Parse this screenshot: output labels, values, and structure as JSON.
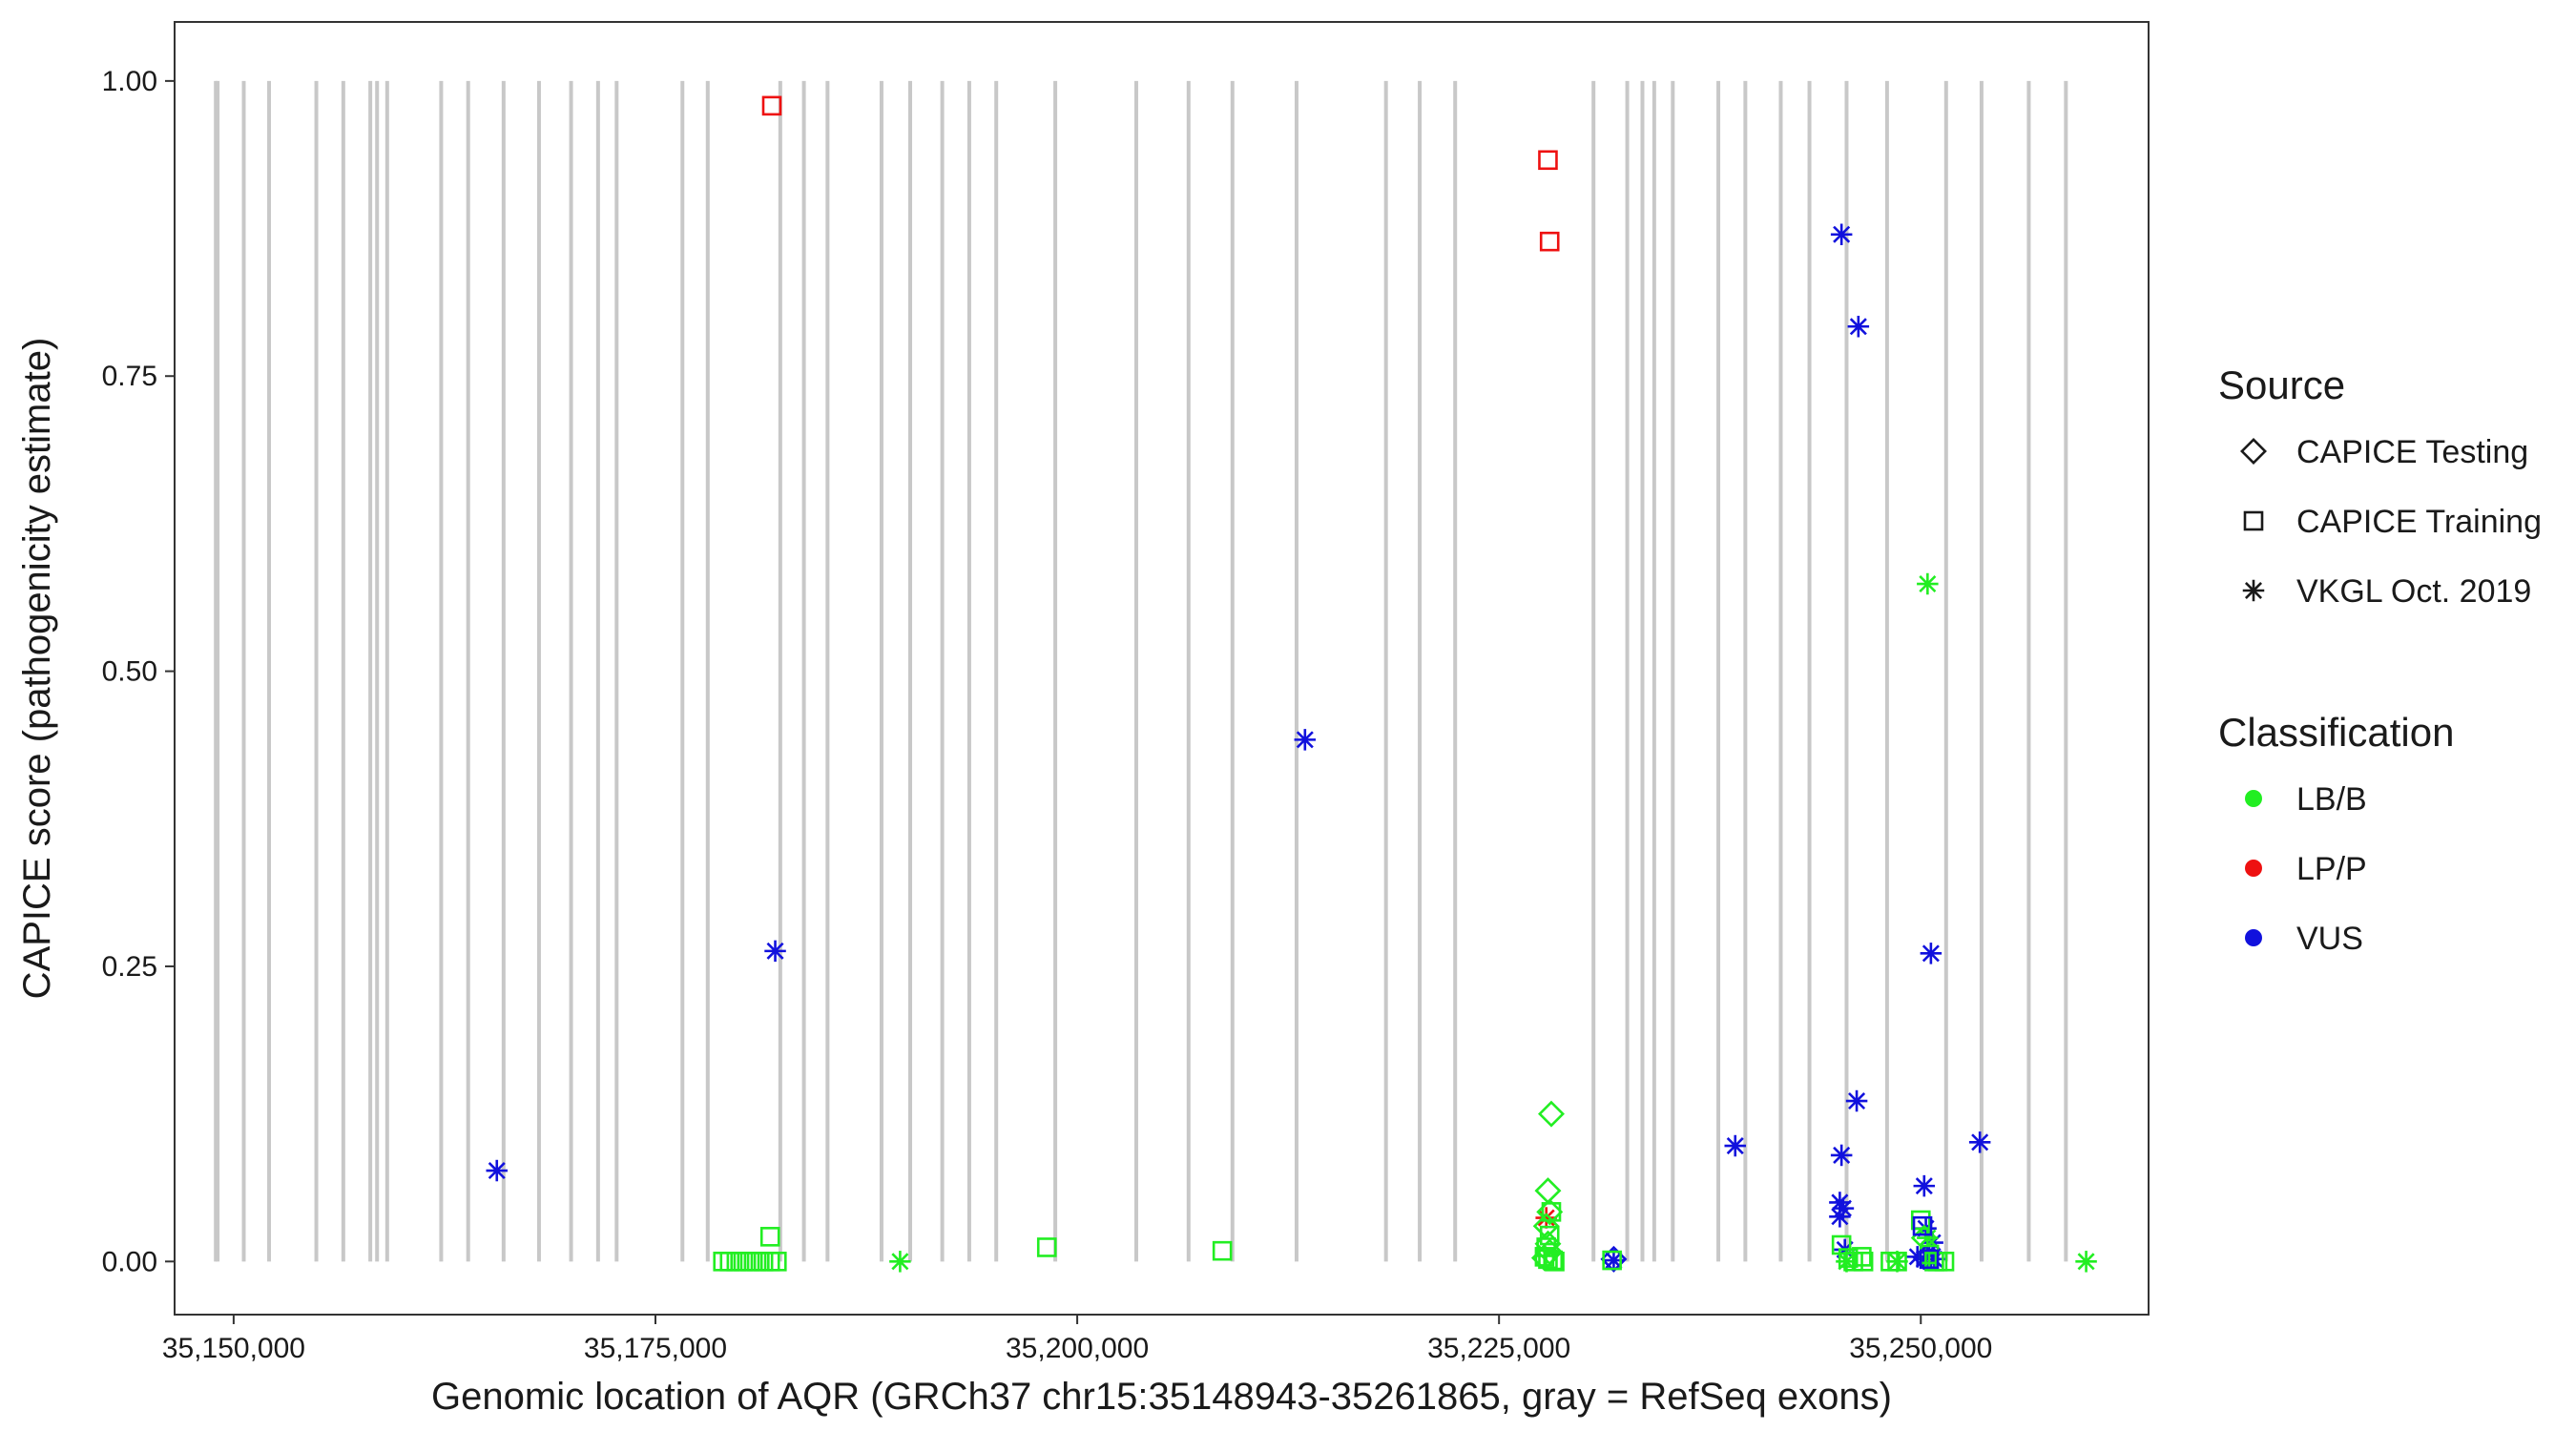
{
  "chart_data": {
    "type": "scatter",
    "xlabel": "Genomic location of AQR (GRCh37 chr15:35148943-35261865, gray = RefSeq exons)",
    "ylabel": "CAPICE score (pathogenicity estimate)",
    "xlim": [
      35146500,
      35263500
    ],
    "ylim": [
      -0.045,
      1.05
    ],
    "x_ticks": [
      35150000,
      35175000,
      35200000,
      35225000,
      35250000
    ],
    "x_tick_labels": [
      "35,150,000",
      "35,175,000",
      "35,200,000",
      "35,225,000",
      "35,250,000"
    ],
    "y_ticks": [
      0,
      0.25,
      0.5,
      0.75,
      1.0
    ],
    "y_tick_labels": [
      "0.00",
      "0.25",
      "0.50",
      "0.75",
      "1.00"
    ],
    "grid": false,
    "exon_band": {
      "color": "#c8c8c8",
      "ymin": 0,
      "ymax": 1.0
    },
    "exons": [
      35148943,
      35149050,
      35150600,
      35152100,
      35154900,
      35156500,
      35158100,
      35158500,
      35159100,
      35162300,
      35163900,
      35166000,
      35168100,
      35170000,
      35171600,
      35172700,
      35176600,
      35178100,
      35182400,
      35183800,
      35185200,
      35188400,
      35190100,
      35192000,
      35193600,
      35195200,
      35198700,
      35203500,
      35206600,
      35209200,
      35213000,
      35218300,
      35220300,
      35222400,
      35230600,
      35232600,
      35233500,
      35234200,
      35235300,
      35238000,
      35239600,
      35241700,
      35243400,
      35245600,
      35248000,
      35251500,
      35253600,
      35256400,
      35258600
    ],
    "legend": {
      "position": "right",
      "source_title": "Source",
      "classification_title": "Classification",
      "sources": [
        {
          "label": "CAPICE Testing",
          "shape": "diamond"
        },
        {
          "label": "CAPICE Training",
          "shape": "square"
        },
        {
          "label": "VKGL Oct. 2019",
          "shape": "asterisk"
        }
      ],
      "classifications": [
        {
          "label": "LB/B",
          "color": "#22ee22"
        },
        {
          "label": "LP/P",
          "color": "#ee1111"
        },
        {
          "label": "VUS",
          "color": "#1111dd"
        }
      ]
    },
    "series": [
      {
        "source": "CAPICE Training",
        "classification": "LP/P",
        "points": [
          [
            35181900,
            0.979
          ],
          [
            35227900,
            0.933
          ],
          [
            35228000,
            0.864
          ]
        ]
      },
      {
        "source": "VKGL Oct. 2019",
        "classification": "VUS",
        "points": [
          [
            35245300,
            0.87
          ],
          [
            35246300,
            0.792
          ],
          [
            35213500,
            0.442
          ],
          [
            35182100,
            0.263
          ],
          [
            35250600,
            0.261
          ],
          [
            35246200,
            0.136
          ],
          [
            35253500,
            0.101
          ],
          [
            35239000,
            0.098
          ],
          [
            35245300,
            0.09
          ],
          [
            35250200,
            0.064
          ],
          [
            35245200,
            0.05
          ],
          [
            35245400,
            0.045
          ],
          [
            35245200,
            0.038
          ],
          [
            35250300,
            0.028
          ],
          [
            35250700,
            0.016
          ],
          [
            35245500,
            0.01
          ],
          [
            35250500,
            0.008
          ],
          [
            35249800,
            0.004
          ],
          [
            35250200,
            0.002
          ],
          [
            35250800,
            0.002
          ],
          [
            35231800,
            0.001
          ],
          [
            35165600,
            0.077
          ]
        ]
      },
      {
        "source": "VKGL Oct. 2019",
        "classification": "LB/B",
        "points": [
          [
            35250400,
            0.574
          ],
          [
            35189500,
            0.0
          ],
          [
            35259800,
            0.0
          ],
          [
            35248600,
            0.0
          ],
          [
            35245600,
            0.0
          ],
          [
            35250400,
            0.02
          ]
        ]
      },
      {
        "source": "VKGL Oct. 2019",
        "classification": "LP/P",
        "points": [
          [
            35227800,
            0.037
          ]
        ]
      },
      {
        "source": "CAPICE Testing",
        "classification": "LB/B",
        "points": [
          [
            35228100,
            0.125
          ],
          [
            35227900,
            0.06
          ],
          [
            35228000,
            0.042
          ],
          [
            35227800,
            0.03
          ],
          [
            35227900,
            0.015
          ],
          [
            35228000,
            0.008
          ],
          [
            35227700,
            0.003
          ],
          [
            35250200,
            0.02
          ]
        ]
      },
      {
        "source": "CAPICE Testing",
        "classification": "VUS",
        "points": [
          [
            35231800,
            0.002
          ],
          [
            35250300,
            0.003
          ]
        ]
      },
      {
        "source": "CAPICE Training",
        "classification": "LB/B",
        "points": [
          [
            35181800,
            0.021
          ],
          [
            35198200,
            0.012
          ],
          [
            35208600,
            0.009
          ],
          [
            35228100,
            0.042
          ],
          [
            35228000,
            0.022
          ],
          [
            35227800,
            0.012
          ],
          [
            35227700,
            0.004
          ],
          [
            35227900,
            0.002
          ],
          [
            35228200,
            0.001
          ],
          [
            35228300,
            0.0
          ],
          [
            35179000,
            0.0
          ],
          [
            35179400,
            0.0
          ],
          [
            35179800,
            0.0
          ],
          [
            35180200,
            0.0
          ],
          [
            35180600,
            0.0
          ],
          [
            35181000,
            0.0
          ],
          [
            35181400,
            0.0
          ],
          [
            35181800,
            0.0
          ],
          [
            35182200,
            0.0
          ],
          [
            35245300,
            0.014
          ],
          [
            35245700,
            0.003
          ],
          [
            35246000,
            0.0
          ],
          [
            35246500,
            0.004
          ],
          [
            35246600,
            0.0
          ],
          [
            35248200,
            0.0
          ],
          [
            35248600,
            0.0
          ],
          [
            35250000,
            0.035
          ],
          [
            35250500,
            0.006
          ],
          [
            35251000,
            0.0
          ],
          [
            35251400,
            0.0
          ],
          [
            35250800,
            0.0
          ],
          [
            35231700,
            0.001
          ]
        ]
      },
      {
        "source": "CAPICE Training",
        "classification": "VUS",
        "points": [
          [
            35250100,
            0.03
          ],
          [
            35250500,
            0.002
          ]
        ]
      }
    ]
  }
}
